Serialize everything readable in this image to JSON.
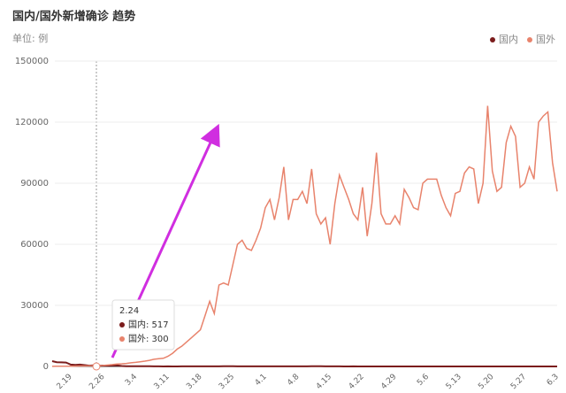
{
  "chart_data": {
    "type": "line",
    "title": "国内/国外新增确诊 趋势",
    "unit_label": "单位: 例",
    "categories": [
      null,
      null,
      null,
      null,
      "2.19",
      null,
      null,
      null,
      null,
      null,
      null,
      "2.26",
      null,
      null,
      null,
      null,
      null,
      null,
      "3.4",
      null,
      null,
      null,
      null,
      null,
      null,
      "3.11",
      null,
      null,
      null,
      null,
      null,
      null,
      "3.18",
      null,
      null,
      null,
      null,
      null,
      null,
      "3.25",
      null,
      null,
      null,
      null,
      null,
      null,
      "4.1",
      null,
      null,
      null,
      null,
      null,
      null,
      "4.8",
      null,
      null,
      null,
      null,
      null,
      null,
      "4.15",
      null,
      null,
      null,
      null,
      null,
      null,
      "4.22",
      null,
      null,
      null,
      null,
      null,
      null,
      "4.29",
      null,
      null,
      null,
      null,
      null,
      null,
      "5.6",
      null,
      null,
      null,
      null,
      null,
      null,
      "5.13",
      null,
      null,
      null,
      null,
      null,
      null,
      "5.20",
      null,
      null,
      null,
      null,
      null,
      null,
      "5.27",
      null,
      null,
      null,
      null,
      null,
      null,
      "6.3"
    ],
    "series": [
      {
        "name": "国内",
        "color": "#7b1c1c",
        "values": [
          2600,
          2100,
          2000,
          1900,
          900,
          800,
          900,
          650,
          400,
          517,
          400,
          430,
          330,
          430,
          570,
          200,
          130,
          120,
          140,
          140,
          100,
          100,
          45,
          40,
          20,
          30,
          20,
          20,
          25,
          30,
          40,
          25,
          35,
          40,
          40,
          45,
          40,
          80,
          80,
          70,
          55,
          55,
          45,
          30,
          50,
          40,
          35,
          35,
          30,
          40,
          40,
          30,
          60,
          60,
          45,
          45,
          100,
          108,
          90,
          55,
          45,
          25,
          25,
          20,
          15,
          30,
          10,
          20,
          10,
          15,
          10,
          5,
          5,
          3,
          20,
          10,
          10,
          10,
          5,
          5,
          3,
          5,
          5,
          10,
          15,
          15,
          10,
          10,
          5,
          5,
          5,
          5,
          10,
          10,
          10,
          10,
          5,
          5,
          5,
          5,
          10,
          10,
          5,
          5,
          5,
          5,
          15,
          5,
          5,
          10
        ]
      },
      {
        "name": "国外",
        "color": "#e8836c",
        "values": [
          60,
          80,
          100,
          120,
          150,
          180,
          200,
          230,
          260,
          300,
          400,
          500,
          700,
          900,
          1200,
          1300,
          1500,
          1800,
          2000,
          2300,
          2600,
          3000,
          3500,
          3800,
          4000,
          5000,
          6500,
          8500,
          10000,
          12000,
          14000,
          16000,
          18000,
          25000,
          32000,
          26000,
          40000,
          41000,
          40000,
          50000,
          60000,
          62000,
          58000,
          57000,
          62000,
          68000,
          78000,
          82000,
          72000,
          83000,
          98000,
          72000,
          82000,
          82000,
          86000,
          80000,
          97000,
          75000,
          70000,
          73000,
          60000,
          80000,
          94000,
          88000,
          82000,
          75000,
          72000,
          88000,
          64000,
          80000,
          105000,
          75000,
          70000,
          70000,
          74000,
          70000,
          87000,
          83000,
          78000,
          77000,
          90000,
          92000,
          92000,
          92000,
          84000,
          78000,
          74000,
          85000,
          86000,
          95000,
          98000,
          97000,
          80000,
          90000,
          128000,
          96000,
          86000,
          88000,
          110000,
          118000,
          113000,
          88000,
          90000,
          98000,
          92000,
          120000,
          123000,
          125000,
          100000,
          86000
        ]
      }
    ],
    "ylim": [
      0,
      150000
    ],
    "yticks": [
      0,
      30000,
      60000,
      90000,
      120000,
      150000
    ],
    "grid": true,
    "legend": "top-right",
    "tooltip": {
      "title": "2.24",
      "rows": [
        "国内: 517",
        "国外: 300"
      ]
    }
  }
}
